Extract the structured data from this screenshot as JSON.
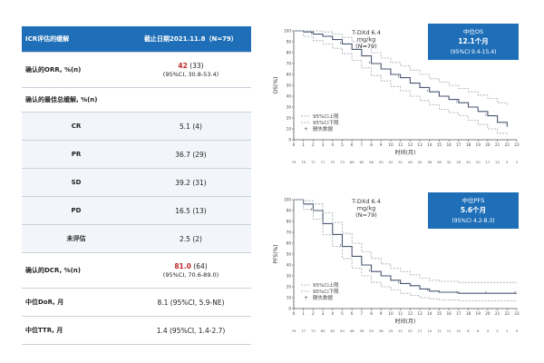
{
  "table": {
    "header": [
      "ICR评估的缓解",
      "截止日期2021.11.8（N=79）"
    ],
    "rows": [
      {
        "label": "确认的ORR, %(n)",
        "value": "42",
        "value_extra": " (33)",
        "ci": "(95%CI, 30.8-53.4)",
        "highlight": true
      },
      {
        "label": "确认的最佳总缓解, %(n)",
        "section": true
      },
      {
        "label": "CR",
        "value": "5.1 (4)"
      },
      {
        "label": "PR",
        "value": "36.7 (29)"
      },
      {
        "label": "SD",
        "value": "39.2 (31)"
      },
      {
        "label": "PD",
        "value": "16.5 (13)"
      },
      {
        "label": "未评估",
        "value": "2.5 (2)"
      },
      {
        "label": "确认的DCR, %(n)",
        "value": "81.0",
        "value_extra": " (64)",
        "ci": "(95%CI, 70.6-89.0)",
        "highlight": true
      },
      {
        "label": "中位DoR, 月",
        "value": "8.1 (95%CI, 5.9-NE)"
      },
      {
        "label": "中位TTR, 月",
        "value": "1.4 (95%CI, 1.4-2.7)"
      }
    ]
  },
  "chart_data": [
    {
      "type": "line",
      "title": "T-DXd 6.4\nmg/kg\n(N=79)",
      "ylabel": "OS(%)",
      "xlabel": "时间(月)",
      "ylim": [
        0,
        100
      ],
      "xlim": [
        0,
        23
      ],
      "box": {
        "line1": "中位OS",
        "line2": "12.1个月",
        "line3": "(95%CI 9.4-15.4)"
      },
      "legend": [
        "95%CI上限",
        "95%CI下限",
        "删失数据"
      ],
      "at_risk": [
        79,
        79,
        77,
        77,
        75,
        73,
        69,
        65,
        58,
        55,
        52,
        51,
        46,
        42,
        38,
        36,
        32,
        29,
        25,
        20,
        17,
        12,
        5,
        2
      ],
      "series": [
        {
          "role": "estimate",
          "x": [
            0,
            1,
            2,
            3,
            4,
            5,
            6,
            7,
            8,
            9,
            10,
            11,
            12,
            13,
            14,
            15,
            16,
            17,
            18,
            19,
            20,
            21,
            22
          ],
          "y": [
            100,
            99,
            97,
            95,
            92,
            88,
            83,
            77,
            70,
            65,
            60,
            57,
            52,
            48,
            44,
            40,
            37,
            34,
            30,
            26,
            22,
            16,
            12
          ]
        },
        {
          "role": "ci-upper",
          "x": [
            0,
            1,
            2,
            3,
            4,
            5,
            6,
            7,
            8,
            9,
            10,
            11,
            12,
            13,
            14,
            15,
            16,
            17,
            18,
            19,
            20,
            21,
            22
          ],
          "y": [
            100,
            100,
            100,
            99,
            97,
            94,
            90,
            86,
            80,
            75,
            71,
            68,
            64,
            60,
            56,
            53,
            50,
            47,
            44,
            41,
            38,
            34,
            32
          ]
        },
        {
          "role": "ci-lower",
          "x": [
            0,
            1,
            2,
            3,
            4,
            5,
            6,
            7,
            8,
            9,
            10,
            11,
            12,
            13,
            14,
            15,
            16,
            17,
            18,
            19,
            20,
            21,
            22
          ],
          "y": [
            100,
            95,
            91,
            88,
            84,
            79,
            73,
            66,
            59,
            54,
            49,
            45,
            40,
            36,
            32,
            28,
            25,
            22,
            18,
            14,
            10,
            6,
            4
          ]
        }
      ]
    },
    {
      "type": "line",
      "title": "T-DXd 6.4\nmg/kg\n(N=79)",
      "ylabel": "PFS(%)",
      "xlabel": "时间(月)",
      "ylim": [
        0,
        100
      ],
      "xlim": [
        0,
        23
      ],
      "box": {
        "line1": "中位PFS",
        "line2": "5.6个月",
        "line3": "(95%CI 4.2-8.3)"
      },
      "legend": [
        "95%CI上限",
        "95%CI下限",
        "删失数据"
      ],
      "at_risk": [
        79,
        77,
        73,
        65,
        62,
        54,
        46,
        39,
        33,
        28,
        25,
        22,
        20,
        17,
        14,
        12,
        11,
        10,
        8,
        6,
        4,
        2,
        1,
        0
      ],
      "series": [
        {
          "role": "estimate",
          "x": [
            0,
            1,
            2,
            3,
            4,
            5,
            6,
            7,
            8,
            9,
            10,
            11,
            12,
            13,
            14,
            15,
            16,
            17,
            18,
            19,
            20,
            21,
            22,
            23
          ],
          "y": [
            100,
            96,
            90,
            78,
            68,
            57,
            48,
            40,
            34,
            30,
            26,
            23,
            21,
            18,
            16,
            15,
            15,
            14,
            14,
            14,
            14,
            14,
            14,
            14
          ]
        },
        {
          "role": "ci-upper",
          "x": [
            0,
            1,
            2,
            3,
            4,
            5,
            6,
            7,
            8,
            9,
            10,
            11,
            12,
            13,
            14,
            15,
            16,
            17,
            18,
            19,
            20,
            21,
            22,
            23
          ],
          "y": [
            100,
            99,
            96,
            88,
            79,
            69,
            60,
            52,
            46,
            41,
            37,
            34,
            31,
            28,
            26,
            25,
            25,
            24,
            24,
            24,
            24,
            24,
            24,
            24
          ]
        },
        {
          "role": "ci-lower",
          "x": [
            0,
            1,
            2,
            3,
            4,
            5,
            6,
            7,
            8,
            9,
            10,
            11,
            12,
            13,
            14,
            15,
            16,
            17,
            18,
            19,
            20,
            21,
            22,
            23
          ],
          "y": [
            100,
            91,
            82,
            68,
            57,
            46,
            37,
            30,
            24,
            20,
            17,
            14,
            12,
            10,
            9,
            8,
            8,
            7,
            7,
            7,
            7,
            7,
            7,
            7
          ]
        }
      ]
    }
  ],
  "colors": {
    "header_blue": "#1f6fb8",
    "estimate_line": "#4a5670",
    "ci_line": "#9aa6b2",
    "highlight_red": "#c0282a"
  }
}
